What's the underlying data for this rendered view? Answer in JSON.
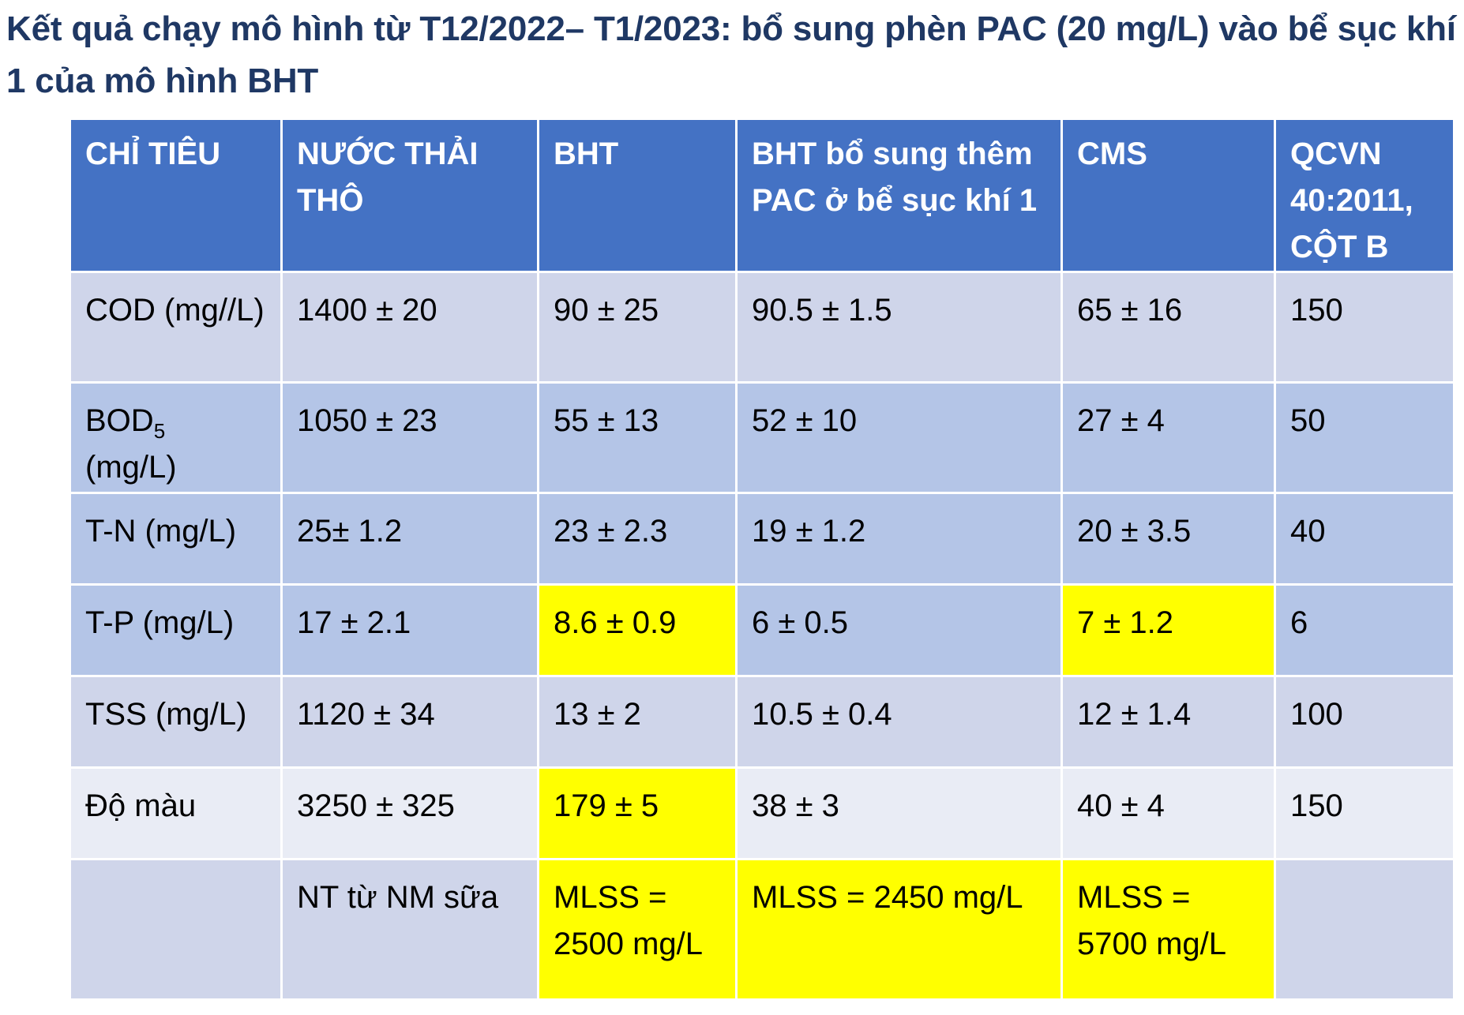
{
  "title": "Kết quả chạy mô hình từ T12/2022– T1/2023: bổ sung phèn PAC (20 mg/L) vào bể sục khí 1 của mô hình BHT",
  "headers": {
    "indicator": "CHỈ TIÊU",
    "raw": "NƯỚC THẢI THÔ",
    "bht": "BHT",
    "bht_pac": "BHT bổ sung thêm PAC ở bể sục khí 1",
    "cms": "CMS",
    "qcvn": "QCVN 40:2011, CỘT B"
  },
  "rows": {
    "cod": {
      "indicator": "COD (mg//L)",
      "raw": "1400 ± 20",
      "bht": "90 ± 25",
      "bht_pac": "90.5 ± 1.5",
      "cms": "65 ± 16",
      "qcvn": "150"
    },
    "bod": {
      "indicator_main": "BOD",
      "indicator_sub": "5",
      "indicator_unit": "(mg/L)",
      "raw": "1050 ± 23",
      "bht": "55 ± 13",
      "bht_pac": "52 ± 10",
      "cms": "27 ± 4",
      "qcvn": "50"
    },
    "tn": {
      "indicator": "T-N (mg/L)",
      "raw": "25± 1.2",
      "bht": "23 ± 2.3",
      "bht_pac": "19 ± 1.2",
      "cms": "20 ± 3.5",
      "qcvn": "40"
    },
    "tp": {
      "indicator": "T-P (mg/L)",
      "raw": "17 ± 2.1",
      "bht": "8.6 ± 0.9",
      "bht_pac": "6 ± 0.5",
      "cms": "7 ± 1.2",
      "qcvn": "6"
    },
    "tss": {
      "indicator": "TSS (mg/L)",
      "raw": "1120 ± 34",
      "bht": "13 ± 2",
      "bht_pac": "10.5 ± 0.4",
      "cms": "12 ± 1.4",
      "qcvn": "100"
    },
    "color": {
      "indicator": "Độ màu",
      "raw": "3250 ± 325",
      "bht": "179 ± 5",
      "bht_pac": "38 ± 3",
      "cms": "40 ± 4",
      "qcvn": "150"
    },
    "note": {
      "indicator": "",
      "raw": "NT từ NM sữa",
      "bht": "MLSS = 2500 mg/L",
      "bht_pac": "MLSS = 2450 mg/L",
      "cms": "MLSS = 5700 mg/L",
      "qcvn": ""
    }
  },
  "colors": {
    "title": "#1f3864",
    "header_bg": "#4472c4",
    "row_light": "#cfd5ea",
    "row_dark": "#b4c5e7",
    "highlight": "#ffff00"
  }
}
